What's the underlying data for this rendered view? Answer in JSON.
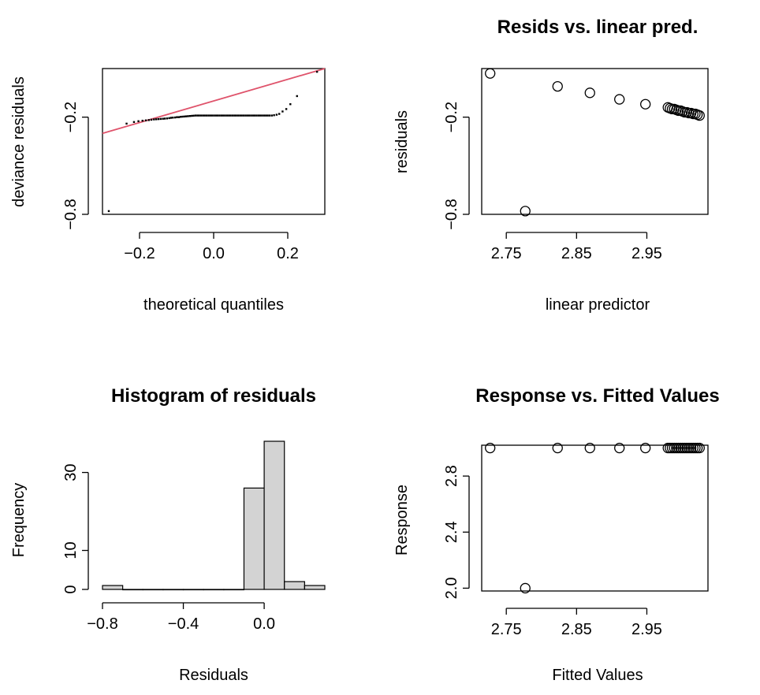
{
  "chart_data": [
    {
      "type": "scatter",
      "title": "",
      "xlabel": "theoretical quantiles",
      "ylabel": "deviance residuals",
      "xlim": [
        -0.3,
        0.3
      ],
      "ylim": [
        -0.8,
        0.1
      ],
      "x_ticks": [
        -0.2,
        0.0,
        0.2
      ],
      "x_tick_labels": [
        "−0.2",
        "0.0",
        "0.2"
      ],
      "y_ticks": [
        -0.8,
        -0.2
      ],
      "y_tick_labels": [
        "−0.8",
        "−0.2"
      ],
      "grid": false,
      "reference_line": {
        "color": "#DF536B",
        "points": [
          [
            -0.3,
            -0.3
          ],
          [
            0.3,
            0.1
          ]
        ]
      },
      "series": [
        {
          "marker": "dot",
          "x": [
            -0.283,
            -0.235,
            -0.215,
            -0.203,
            -0.192,
            -0.183,
            -0.175,
            -0.168,
            -0.161,
            -0.155,
            -0.149,
            -0.143,
            -0.137,
            -0.132,
            -0.126,
            -0.12,
            -0.115,
            -0.11,
            -0.104,
            -0.099,
            -0.094,
            -0.089,
            -0.084,
            -0.079,
            -0.074,
            -0.069,
            -0.064,
            -0.059,
            -0.054,
            -0.049,
            -0.044,
            -0.039,
            -0.034,
            -0.029,
            -0.024,
            -0.019,
            -0.014,
            -0.009,
            -0.004,
            0.001,
            0.006,
            0.011,
            0.016,
            0.021,
            0.026,
            0.031,
            0.036,
            0.041,
            0.046,
            0.051,
            0.056,
            0.061,
            0.066,
            0.071,
            0.076,
            0.081,
            0.086,
            0.091,
            0.096,
            0.101,
            0.106,
            0.111,
            0.116,
            0.121,
            0.126,
            0.131,
            0.136,
            0.141,
            0.146,
            0.151,
            0.157,
            0.163,
            0.17,
            0.177,
            0.186,
            0.196,
            0.207,
            0.225,
            0.279
          ],
          "y": [
            -0.78,
            -0.24,
            -0.23,
            -0.225,
            -0.222,
            -0.22,
            -0.218,
            -0.216,
            -0.214,
            -0.213,
            -0.212,
            -0.211,
            -0.21,
            -0.209,
            -0.208,
            -0.206,
            -0.204,
            -0.203,
            -0.202,
            -0.2,
            -0.2,
            -0.198,
            -0.197,
            -0.196,
            -0.195,
            -0.194,
            -0.193,
            -0.192,
            -0.191,
            -0.19,
            -0.19,
            -0.19,
            -0.19,
            -0.19,
            -0.19,
            -0.19,
            -0.19,
            -0.19,
            -0.19,
            -0.19,
            -0.19,
            -0.19,
            -0.19,
            -0.19,
            -0.19,
            -0.19,
            -0.19,
            -0.19,
            -0.19,
            -0.19,
            -0.19,
            -0.19,
            -0.19,
            -0.19,
            -0.19,
            -0.19,
            -0.19,
            -0.19,
            -0.19,
            -0.19,
            -0.19,
            -0.19,
            -0.19,
            -0.19,
            -0.19,
            -0.19,
            -0.19,
            -0.19,
            -0.19,
            -0.19,
            -0.19,
            -0.188,
            -0.185,
            -0.18,
            -0.165,
            -0.15,
            -0.12,
            -0.07,
            0.08
          ]
        }
      ]
    },
    {
      "type": "scatter",
      "title": "Resids vs. linear pred.",
      "xlabel": "linear predictor",
      "ylabel": "residuals",
      "xlim": [
        2.715,
        3.037
      ],
      "ylim": [
        -0.8,
        0.1
      ],
      "x_ticks": [
        2.75,
        2.85,
        2.95
      ],
      "x_tick_labels": [
        "2.75",
        "2.85",
        "2.95"
      ],
      "y_ticks": [
        -0.8,
        -0.2
      ],
      "y_tick_labels": [
        "−0.8",
        "−0.2"
      ],
      "grid": false,
      "series": [
        {
          "marker": "open-circle",
          "x": [
            2.727,
            2.777,
            2.823,
            2.869,
            2.911,
            2.948,
            2.98,
            2.983,
            2.986,
            2.989,
            2.992,
            2.995,
            2.998,
            3.001,
            3.004,
            3.007,
            3.01,
            3.013,
            3.016,
            3.019,
            3.022,
            3.025
          ],
          "y": [
            0.07,
            -0.78,
            -0.01,
            -0.05,
            -0.09,
            -0.12,
            -0.14,
            -0.145,
            -0.15,
            -0.15,
            -0.155,
            -0.16,
            -0.16,
            -0.165,
            -0.17,
            -0.17,
            -0.175,
            -0.175,
            -0.18,
            -0.18,
            -0.185,
            -0.19
          ]
        }
      ]
    },
    {
      "type": "bar",
      "title": "Histogram of residuals",
      "xlabel": "Residuals",
      "ylabel": "Frequency",
      "xlim": [
        -0.8,
        0.3
      ],
      "ylim": [
        0,
        38
      ],
      "x_ticks": [
        -0.8,
        -0.4,
        0.0
      ],
      "x_tick_labels": [
        "−0.8",
        "−0.4",
        "0.0"
      ],
      "y_ticks": [
        0,
        10,
        30
      ],
      "y_tick_labels": [
        "0",
        "10",
        "30"
      ],
      "grid": false,
      "bar_color": "#D3D3D3",
      "bin_edges": [
        -0.8,
        -0.7,
        -0.6,
        -0.5,
        -0.4,
        -0.3,
        -0.2,
        -0.1,
        0.0,
        0.1,
        0.2,
        0.3
      ],
      "values": [
        1,
        0,
        0,
        0,
        0,
        0,
        0,
        26,
        38,
        2,
        1
      ]
    },
    {
      "type": "scatter",
      "title": "Response vs. Fitted Values",
      "xlabel": "Fitted Values",
      "ylabel": "Response",
      "xlim": [
        2.715,
        3.037
      ],
      "ylim": [
        1.98,
        3.02
      ],
      "x_ticks": [
        2.75,
        2.85,
        2.95
      ],
      "x_tick_labels": [
        "2.75",
        "2.85",
        "2.95"
      ],
      "y_ticks": [
        2.0,
        2.4,
        2.8
      ],
      "y_tick_labels": [
        "2.0",
        "2.4",
        "2.8"
      ],
      "grid": false,
      "series": [
        {
          "marker": "open-circle",
          "x": [
            2.727,
            2.777,
            2.823,
            2.869,
            2.911,
            2.948,
            2.98,
            2.983,
            2.986,
            2.989,
            2.992,
            2.995,
            2.998,
            3.001,
            3.004,
            3.007,
            3.01,
            3.013,
            3.016,
            3.019,
            3.022,
            3.025
          ],
          "y": [
            3,
            2,
            3,
            3,
            3,
            3,
            3,
            3,
            3,
            3,
            3,
            3,
            3,
            3,
            3,
            3,
            3,
            3,
            3,
            3,
            3,
            3
          ]
        }
      ]
    }
  ]
}
